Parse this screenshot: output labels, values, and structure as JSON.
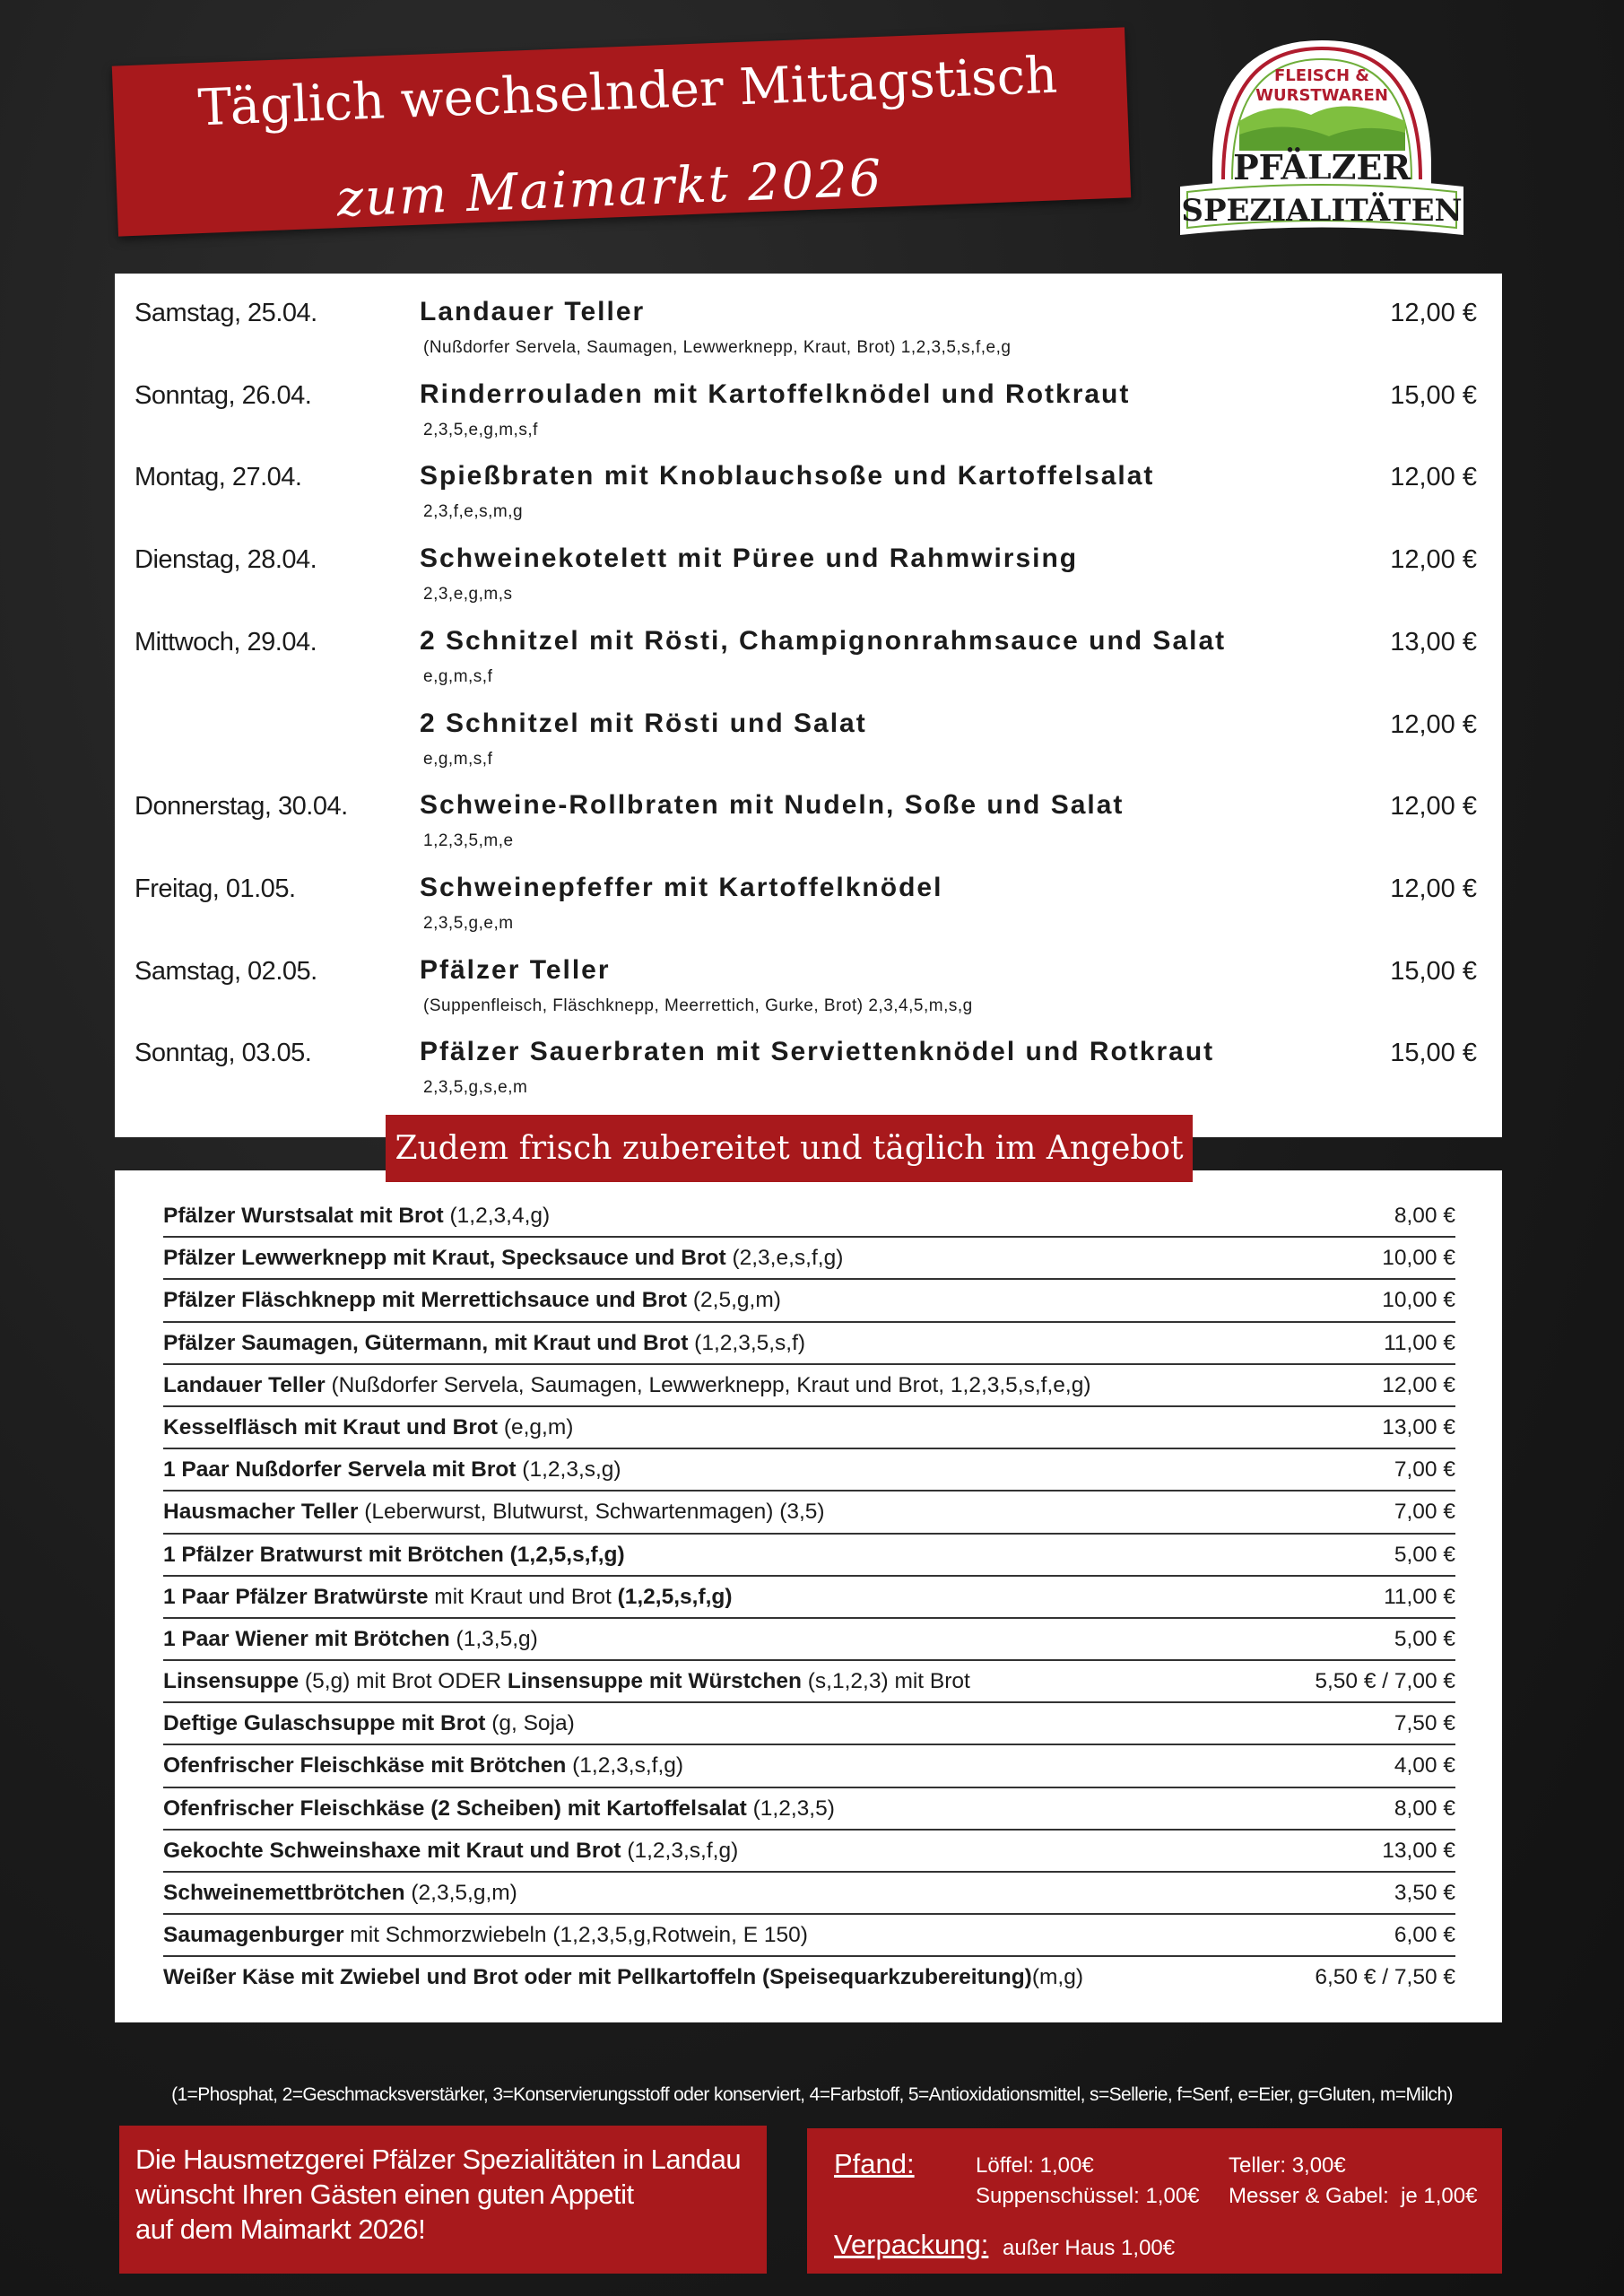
{
  "header": {
    "title": "Täglich wechselnder Mittagstisch",
    "subtitle": "zum Maimarkt 2026"
  },
  "logo": {
    "top_text_1": "FLEISCH &",
    "top_text_2": "WURSTWAREN",
    "brand_1": "PFÄLZER",
    "brand_2": "SPEZIALITÄTEN",
    "colors": {
      "red": "#b01c2e",
      "green": "#6fae3a"
    }
  },
  "daily_menu": [
    {
      "date": "Samstag, 25.04.",
      "dish": "Landauer Teller",
      "sub": "(Nußdorfer Servela, Saumagen, Lewwerknepp, Kraut, Brot) 1,2,3,5,s,f,e,g",
      "price": "12,00 €"
    },
    {
      "date": "Sonntag, 26.04.",
      "dish": "Rinderrouladen mit Kartoffelknödel und Rotkraut",
      "sub": "2,3,5,e,g,m,s,f",
      "price": "15,00 €"
    },
    {
      "date": "Montag, 27.04.",
      "dish": "Spießbraten mit Knoblauchsoße und Kartoffelsalat",
      "sub": "2,3,f,e,s,m,g",
      "price": "12,00 €"
    },
    {
      "date": "Dienstag, 28.04.",
      "dish": "Schweinekotelett mit Püree und Rahmwirsing",
      "sub": "2,3,e,g,m,s",
      "price": "12,00 €"
    },
    {
      "date": "Mittwoch, 29.04.",
      "dish": "2 Schnitzel mit Rösti, Champignonrahmsauce und Salat",
      "sub": "e,g,m,s,f",
      "price": "13,00 €"
    },
    {
      "date": "",
      "dish": "2 Schnitzel mit Rösti und Salat",
      "sub": "e,g,m,s,f",
      "price": "12,00 €"
    },
    {
      "date": "Donnerstag, 30.04.",
      "dish": "Schweine-Rollbraten mit Nudeln, Soße und Salat",
      "sub": "1,2,3,5,m,e",
      "price": "12,00 €"
    },
    {
      "date": "Freitag, 01.05.",
      "dish": "Schweinepfeffer mit Kartoffelknödel",
      "sub": "2,3,5,g,e,m",
      "price": "12,00 €"
    },
    {
      "date": "Samstag, 02.05.",
      "dish": "Pfälzer Teller",
      "sub": "(Suppenfleisch, Fläschknepp, Meerrettich, Gurke, Brot) 2,3,4,5,m,s,g",
      "price": "15,00 €"
    },
    {
      "date": "Sonntag, 03.05.",
      "dish": "Pfälzer Sauerbraten mit Serviettenknödel und Rotkraut",
      "sub": "2,3,5,g,s,e,m",
      "price": "15,00 €"
    }
  ],
  "section_heading": "Zudem frisch zubereitet und täglich im Angebot",
  "standard_menu": [
    {
      "parts": [
        {
          "b": "Pfälzer Wurstsalat mit Brot"
        },
        {
          "t": " (1,2,3,4,g)"
        }
      ],
      "price": "8,00 €"
    },
    {
      "parts": [
        {
          "b": "Pfälzer Lewwerknepp mit Kraut, Specksauce und Brot"
        },
        {
          "t": " (2,3,e,s,f,g)"
        }
      ],
      "price": "10,00 €"
    },
    {
      "parts": [
        {
          "b": "Pfälzer Fläschknepp mit Merrettichsauce und Brot"
        },
        {
          "t": " (2,5,g,m)"
        }
      ],
      "price": "10,00 €"
    },
    {
      "parts": [
        {
          "b": "Pfälzer Saumagen, Gütermann, mit Kraut und Brot"
        },
        {
          "t": " (1,2,3,5,s,f)"
        }
      ],
      "price": "11,00 €"
    },
    {
      "parts": [
        {
          "b": "Landauer Teller"
        },
        {
          "t": " (Nußdorfer Servela, Saumagen, Lewwerknepp, Kraut und Brot, 1,2,3,5,s,f,e,g)"
        }
      ],
      "price": "12,00 €"
    },
    {
      "parts": [
        {
          "b": "Kesselfläsch mit Kraut und Brot"
        },
        {
          "t": " (e,g,m)"
        }
      ],
      "price": "13,00 €"
    },
    {
      "parts": [
        {
          "b": "1 Paar Nußdorfer Servela mit Brot"
        },
        {
          "t": " (1,2,3,s,g)"
        }
      ],
      "price": "7,00 €"
    },
    {
      "parts": [
        {
          "b": "Hausmacher Teller"
        },
        {
          "t": " (Leberwurst, Blutwurst, Schwartenmagen) (3,5)"
        }
      ],
      "price": "7,00 €"
    },
    {
      "parts": [
        {
          "b": "1 Pfälzer Bratwurst mit Brötchen (1,2,5,s,f,g)"
        }
      ],
      "price": "5,00 €"
    },
    {
      "parts": [
        {
          "b": "1 Paar Pfälzer Bratwürste"
        },
        {
          "t": " mit Kraut und Brot "
        },
        {
          "b": "(1,2,5,s,f,g)"
        }
      ],
      "price": "11,00 €"
    },
    {
      "parts": [
        {
          "b": "1 Paar Wiener mit Brötchen"
        },
        {
          "t": " (1,3,5,g)"
        }
      ],
      "price": "5,00 €"
    },
    {
      "parts": [
        {
          "b": "Linsensuppe"
        },
        {
          "t": " (5,g) mit Brot ODER "
        },
        {
          "b": "Linsensuppe mit Würstchen"
        },
        {
          "t": " (s,1,2,3) mit Brot"
        }
      ],
      "price": "5,50 € / 7,00 €"
    },
    {
      "parts": [
        {
          "b": "Deftige Gulaschsuppe mit Brot"
        },
        {
          "t": " (g, Soja)"
        }
      ],
      "price": "7,50 €"
    },
    {
      "parts": [
        {
          "b": "Ofenfrischer Fleischkäse mit Brötchen"
        },
        {
          "t": " (1,2,3,s,f,g)"
        }
      ],
      "price": "4,00 €"
    },
    {
      "parts": [
        {
          "b": "Ofenfrischer Fleischkäse (2 Scheiben) mit Kartoffelsalat"
        },
        {
          "t": " (1,2,3,5)"
        }
      ],
      "price": "8,00 €"
    },
    {
      "parts": [
        {
          "b": "Gekochte Schweinshaxe mit Kraut und Brot"
        },
        {
          "t": " (1,2,3,s,f,g)"
        }
      ],
      "price": "13,00 €"
    },
    {
      "parts": [
        {
          "b": "Schweinemettbrötchen"
        },
        {
          "t": " (2,3,5,g,m)"
        }
      ],
      "price": "3,50 €"
    },
    {
      "parts": [
        {
          "b": "Saumagenburger"
        },
        {
          "t": " mit Schmorzwiebeln (1,2,3,5,g,Rotwein, E 150)"
        }
      ],
      "price": "6,00 €"
    },
    {
      "parts": [
        {
          "b": "Weißer Käse mit Zwiebel und Brot oder mit Pellkartoffeln (Speisequarkzubereitung)"
        },
        {
          "t": "(m,g)"
        }
      ],
      "price": "6,50 € / 7,50 €"
    }
  ],
  "legend": "(1=Phosphat, 2=Geschmacksverstärker, 3=Konservierungsstoff oder konserviert, 4=Farbstoff, 5=Antioxidationsmittel, s=Sellerie, f=Senf, e=Eier, g=Gluten, m=Milch)",
  "greeting": {
    "line1": "Die Hausmetzgerei Pfälzer Spezialitäten in Landau",
    "line2": "wünscht Ihren Gästen einen guten Appetit",
    "line3": "auf dem Maimarkt 2026!"
  },
  "deposit": {
    "label": "Pfand:",
    "loeffel": "Löffel: 1,00€",
    "teller": "Teller: 3,00€",
    "suppe": "Suppenschüssel: 1,00€",
    "besteck": "Messer & Gabel:  je 1,00€",
    "packaging_label": "Verpackung:",
    "packaging": "außer Haus 1,00€"
  },
  "colors": {
    "accent_red": "#a8191c",
    "background": "#1a1a1a"
  }
}
